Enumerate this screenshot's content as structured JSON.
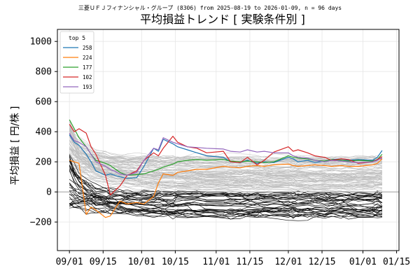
{
  "chart_data": {
    "type": "line",
    "subtitle": "三菱ＵＦＪフィナンシャル・グループ (8306) from 2025-08-19 to 2026-01-09, n = 96 days",
    "title": "平均損益トレンド [ 実験条件別 ]",
    "ylabel": "平均損益 [ 円/株 ]",
    "xlabel": "",
    "xlim": [
      "2025-08-27",
      "2026-01-16"
    ],
    "ylim": [
      -390,
      1080
    ],
    "x_ticks": [
      "2025-09-01",
      "2025-09-15",
      "2025-10-01",
      "2025-10-15",
      "2025-11-01",
      "2025-11-15",
      "2025-12-01",
      "2025-12-15",
      "2026-01-01",
      "2026-01-15"
    ],
    "x_tick_labels": [
      "09/01",
      "09/15",
      "10/01",
      "10/15",
      "11/01",
      "11/15",
      "12/01",
      "12/15",
      "01/01",
      "01/15"
    ],
    "y_ticks": [
      -200,
      0,
      200,
      400,
      600,
      800,
      1000
    ],
    "y_tick_labels": [
      "−200",
      "0",
      "200",
      "400",
      "600",
      "800",
      "1000"
    ],
    "grid": true,
    "zero_line": 0,
    "legend": {
      "title": "top 5",
      "placement": "top-left"
    },
    "series": [
      {
        "name": "258",
        "color": "#1f77b4",
        "points": [
          [
            "2025-09-01",
            380
          ],
          [
            "2025-09-03",
            330
          ],
          [
            "2025-09-05",
            310
          ],
          [
            "2025-09-08",
            250
          ],
          [
            "2025-09-10",
            200
          ],
          [
            "2025-09-12",
            140
          ],
          [
            "2025-09-16",
            110
          ],
          [
            "2025-09-18",
            120
          ],
          [
            "2025-09-22",
            100
          ],
          [
            "2025-09-25",
            90
          ],
          [
            "2025-09-29",
            95
          ],
          [
            "2025-10-02",
            170
          ],
          [
            "2025-10-06",
            290
          ],
          [
            "2025-10-08",
            270
          ],
          [
            "2025-10-10",
            350
          ],
          [
            "2025-10-14",
            320
          ],
          [
            "2025-10-16",
            300
          ],
          [
            "2025-10-20",
            280
          ],
          [
            "2025-10-24",
            260
          ],
          [
            "2025-10-28",
            240
          ],
          [
            "2025-11-04",
            230
          ],
          [
            "2025-11-07",
            200
          ],
          [
            "2025-11-11",
            195
          ],
          [
            "2025-11-14",
            210
          ],
          [
            "2025-11-18",
            190
          ],
          [
            "2025-11-21",
            200
          ],
          [
            "2025-11-25",
            195
          ],
          [
            "2025-12-01",
            230
          ],
          [
            "2025-12-03",
            220
          ],
          [
            "2025-12-05",
            200
          ],
          [
            "2025-12-09",
            210
          ],
          [
            "2025-12-12",
            195
          ],
          [
            "2025-12-16",
            205
          ],
          [
            "2025-12-19",
            215
          ],
          [
            "2025-12-23",
            220
          ],
          [
            "2025-12-26",
            210
          ],
          [
            "2025-12-30",
            215
          ],
          [
            "2026-01-05",
            210
          ],
          [
            "2026-01-07",
            230
          ],
          [
            "2026-01-09",
            275
          ]
        ]
      },
      {
        "name": "224",
        "color": "#ff7f0e",
        "points": [
          [
            "2025-09-01",
            210
          ],
          [
            "2025-09-03",
            200
          ],
          [
            "2025-09-05",
            190
          ],
          [
            "2025-09-08",
            -150
          ],
          [
            "2025-09-10",
            -100
          ],
          [
            "2025-09-12",
            -120
          ],
          [
            "2025-09-16",
            -170
          ],
          [
            "2025-09-18",
            -160
          ],
          [
            "2025-09-22",
            -60
          ],
          [
            "2025-09-25",
            -80
          ],
          [
            "2025-09-29",
            -70
          ],
          [
            "2025-10-02",
            -80
          ],
          [
            "2025-10-06",
            -30
          ],
          [
            "2025-10-08",
            60
          ],
          [
            "2025-10-10",
            120
          ],
          [
            "2025-10-14",
            110
          ],
          [
            "2025-10-16",
            130
          ],
          [
            "2025-10-20",
            140
          ],
          [
            "2025-10-24",
            150
          ],
          [
            "2025-10-28",
            150
          ],
          [
            "2025-11-04",
            170
          ],
          [
            "2025-11-07",
            165
          ],
          [
            "2025-11-11",
            160
          ],
          [
            "2025-11-14",
            170
          ],
          [
            "2025-11-18",
            175
          ],
          [
            "2025-11-21",
            170
          ],
          [
            "2025-11-25",
            180
          ],
          [
            "2025-12-01",
            185
          ],
          [
            "2025-12-03",
            175
          ],
          [
            "2025-12-05",
            170
          ],
          [
            "2025-12-09",
            175
          ],
          [
            "2025-12-12",
            180
          ],
          [
            "2025-12-16",
            175
          ],
          [
            "2025-12-19",
            170
          ],
          [
            "2025-12-23",
            175
          ],
          [
            "2025-12-26",
            170
          ],
          [
            "2025-12-30",
            170
          ],
          [
            "2026-01-05",
            180
          ],
          [
            "2026-01-07",
            190
          ],
          [
            "2026-01-09",
            220
          ]
        ]
      },
      {
        "name": "177",
        "color": "#2ca02c",
        "points": [
          [
            "2025-09-01",
            480
          ],
          [
            "2025-09-03",
            420
          ],
          [
            "2025-09-05",
            360
          ],
          [
            "2025-09-08",
            300
          ],
          [
            "2025-09-10",
            250
          ],
          [
            "2025-09-12",
            210
          ],
          [
            "2025-09-16",
            190
          ],
          [
            "2025-09-18",
            175
          ],
          [
            "2025-09-22",
            130
          ],
          [
            "2025-09-25",
            110
          ],
          [
            "2025-09-29",
            115
          ],
          [
            "2025-10-02",
            120
          ],
          [
            "2025-10-06",
            140
          ],
          [
            "2025-10-08",
            150
          ],
          [
            "2025-10-10",
            165
          ],
          [
            "2025-10-14",
            185
          ],
          [
            "2025-10-16",
            200
          ],
          [
            "2025-10-20",
            210
          ],
          [
            "2025-10-24",
            215
          ],
          [
            "2025-10-28",
            210
          ],
          [
            "2025-11-04",
            215
          ],
          [
            "2025-11-07",
            205
          ],
          [
            "2025-11-11",
            200
          ],
          [
            "2025-11-14",
            205
          ],
          [
            "2025-11-18",
            200
          ],
          [
            "2025-11-21",
            195
          ],
          [
            "2025-11-25",
            200
          ],
          [
            "2025-12-01",
            240
          ],
          [
            "2025-12-03",
            230
          ],
          [
            "2025-12-05",
            225
          ],
          [
            "2025-12-09",
            220
          ],
          [
            "2025-12-12",
            210
          ],
          [
            "2025-12-16",
            205
          ],
          [
            "2025-12-19",
            215
          ],
          [
            "2025-12-23",
            210
          ],
          [
            "2025-12-26",
            205
          ],
          [
            "2025-12-30",
            210
          ],
          [
            "2026-01-05",
            205
          ],
          [
            "2026-01-07",
            215
          ],
          [
            "2026-01-09",
            250
          ]
        ]
      },
      {
        "name": "102",
        "color": "#d62728",
        "points": [
          [
            "2025-09-01",
            450
          ],
          [
            "2025-09-03",
            400
          ],
          [
            "2025-09-05",
            420
          ],
          [
            "2025-09-08",
            390
          ],
          [
            "2025-09-10",
            300
          ],
          [
            "2025-09-12",
            250
          ],
          [
            "2025-09-16",
            110
          ],
          [
            "2025-09-18",
            -20
          ],
          [
            "2025-09-22",
            40
          ],
          [
            "2025-09-25",
            110
          ],
          [
            "2025-09-29",
            140
          ],
          [
            "2025-10-02",
            210
          ],
          [
            "2025-10-06",
            260
          ],
          [
            "2025-10-08",
            240
          ],
          [
            "2025-10-10",
            290
          ],
          [
            "2025-10-14",
            370
          ],
          [
            "2025-10-16",
            330
          ],
          [
            "2025-10-20",
            300
          ],
          [
            "2025-10-24",
            290
          ],
          [
            "2025-10-28",
            260
          ],
          [
            "2025-11-04",
            270
          ],
          [
            "2025-11-07",
            200
          ],
          [
            "2025-11-11",
            195
          ],
          [
            "2025-11-14",
            230
          ],
          [
            "2025-11-18",
            180
          ],
          [
            "2025-11-21",
            210
          ],
          [
            "2025-11-25",
            265
          ],
          [
            "2025-12-01",
            300
          ],
          [
            "2025-12-03",
            270
          ],
          [
            "2025-12-05",
            280
          ],
          [
            "2025-12-09",
            260
          ],
          [
            "2025-12-12",
            240
          ],
          [
            "2025-12-16",
            230
          ],
          [
            "2025-12-19",
            210
          ],
          [
            "2025-12-23",
            220
          ],
          [
            "2025-12-26",
            215
          ],
          [
            "2025-12-30",
            190
          ],
          [
            "2026-01-05",
            200
          ],
          [
            "2026-01-07",
            215
          ],
          [
            "2026-01-09",
            235
          ]
        ]
      },
      {
        "name": "193",
        "color": "#9467bd",
        "points": [
          [
            "2025-09-01",
            390
          ],
          [
            "2025-09-03",
            340
          ],
          [
            "2025-09-05",
            330
          ],
          [
            "2025-09-08",
            300
          ],
          [
            "2025-09-10",
            250
          ],
          [
            "2025-09-12",
            200
          ],
          [
            "2025-09-16",
            170
          ],
          [
            "2025-09-18",
            150
          ],
          [
            "2025-09-22",
            120
          ],
          [
            "2025-09-25",
            110
          ],
          [
            "2025-09-29",
            130
          ],
          [
            "2025-10-02",
            210
          ],
          [
            "2025-10-06",
            290
          ],
          [
            "2025-10-08",
            280
          ],
          [
            "2025-10-10",
            360
          ],
          [
            "2025-10-14",
            330
          ],
          [
            "2025-10-16",
            320
          ],
          [
            "2025-10-20",
            300
          ],
          [
            "2025-10-24",
            295
          ],
          [
            "2025-10-28",
            290
          ],
          [
            "2025-11-04",
            285
          ],
          [
            "2025-11-07",
            270
          ],
          [
            "2025-11-11",
            265
          ],
          [
            "2025-11-14",
            280
          ],
          [
            "2025-11-18",
            265
          ],
          [
            "2025-11-21",
            270
          ],
          [
            "2025-11-25",
            260
          ],
          [
            "2025-12-01",
            260
          ],
          [
            "2025-12-03",
            240
          ],
          [
            "2025-12-05",
            230
          ],
          [
            "2025-12-09",
            225
          ],
          [
            "2025-12-12",
            210
          ],
          [
            "2025-12-16",
            200
          ],
          [
            "2025-12-19",
            210
          ],
          [
            "2025-12-23",
            205
          ],
          [
            "2025-12-26",
            200
          ],
          [
            "2025-12-30",
            195
          ],
          [
            "2026-01-05",
            200
          ],
          [
            "2026-01-07",
            210
          ],
          [
            "2026-01-09",
            225
          ]
        ]
      }
    ]
  }
}
